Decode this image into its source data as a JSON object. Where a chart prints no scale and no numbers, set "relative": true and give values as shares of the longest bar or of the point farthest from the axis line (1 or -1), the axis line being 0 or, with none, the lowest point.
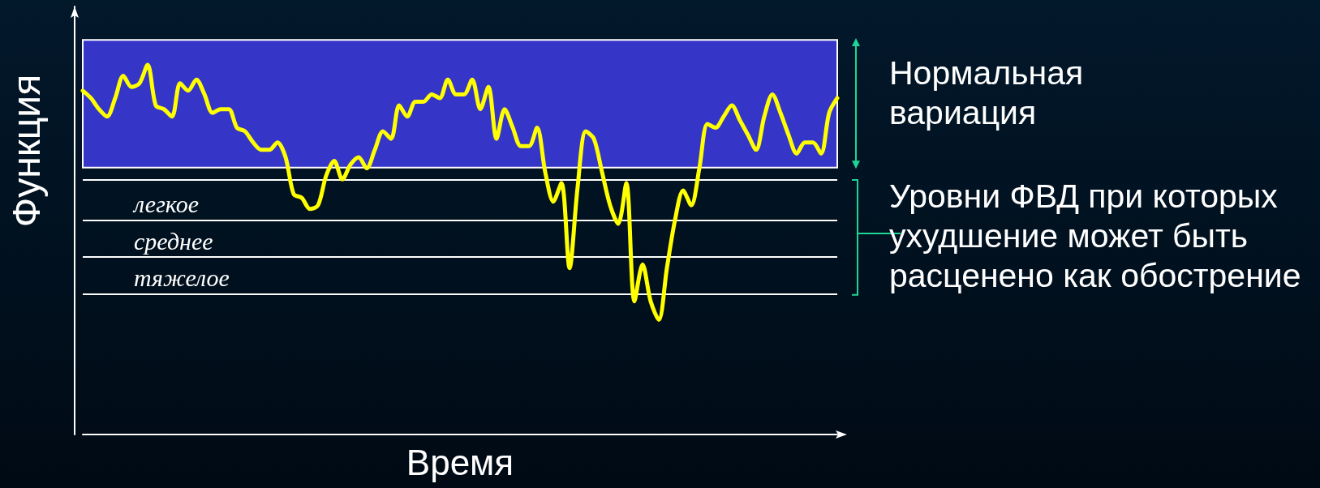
{
  "chart_data": {
    "type": "line",
    "xlabel": "Время",
    "ylabel": "Функция",
    "relative": true,
    "marker": "none",
    "line_style": "solid",
    "grid": false,
    "categories": [
      null,
      null,
      null,
      null,
      null,
      null,
      null,
      null,
      null,
      null,
      null,
      null,
      null,
      null,
      null,
      null,
      null,
      null,
      null,
      null,
      null,
      null,
      null,
      null,
      null,
      null,
      null,
      null,
      null,
      null,
      null,
      null,
      null,
      null,
      null,
      null,
      null,
      null,
      null,
      null,
      null,
      null,
      null,
      null,
      null,
      null,
      null,
      null,
      null,
      null,
      null,
      null,
      null,
      null,
      null,
      null,
      null,
      null,
      null,
      null,
      null,
      null,
      null,
      null,
      null,
      null,
      null,
      null,
      null,
      null,
      null,
      null,
      null,
      null,
      null,
      null,
      null,
      null,
      null,
      null,
      null,
      null,
      null,
      null,
      null,
      null,
      null,
      null,
      null,
      null,
      null,
      null,
      null,
      null
    ],
    "series": [
      {
        "color": "#ffff00",
        "values": [
          0.93,
          0.91,
          0.88,
          0.86,
          0.91,
          0.97,
          0.94,
          0.95,
          1,
          0.89,
          0.88,
          0.86,
          0.95,
          0.93,
          0.96,
          0.92,
          0.87,
          0.88,
          0.88,
          0.83,
          0.82,
          0.79,
          0.77,
          0.77,
          0.79,
          0.75,
          0.65,
          0.64,
          0.61,
          0.62,
          0.7,
          0.74,
          0.69,
          0.73,
          0.75,
          0.72,
          0.77,
          0.82,
          0.8,
          0.89,
          0.86,
          0.9,
          0.9,
          0.92,
          0.91,
          0.96,
          0.92,
          0.92,
          0.96,
          0.88,
          0.94,
          0.8,
          0.88,
          0.83,
          0.78,
          0.78,
          0.83,
          0.71,
          0.63,
          0.68,
          0.45,
          0.67,
          0.82,
          0.8,
          0.71,
          0.62,
          0.57,
          0.68,
          0.36,
          0.46,
          0.36,
          0.31,
          0.45,
          0.58,
          0.66,
          0.62,
          0.72,
          0.84,
          0.83,
          0.86,
          0.89,
          0.85,
          0.81,
          0.77,
          0.86,
          0.92,
          0.87,
          0.81,
          0.76,
          0.79,
          0.79,
          0.76,
          0.87,
          0.91
        ]
      }
    ],
    "bands": [
      {
        "axis": "y",
        "from": 0.722,
        "to": 1.067,
        "label": "Нормальная вариация",
        "color": "#3535c8"
      }
    ],
    "ref_lines": [
      {
        "axis": "y",
        "value": 0.688,
        "label": null,
        "color": "#ffffff"
      },
      {
        "axis": "y",
        "value": 0.579,
        "label": "легкое",
        "color": "#ffffff"
      },
      {
        "axis": "y",
        "value": 0.481,
        "label": "среднее",
        "color": "#ffffff"
      },
      {
        "axis": "y",
        "value": 0.377,
        "label": "тяжелое",
        "color": "#ffffff"
      }
    ],
    "annotations": [
      "Уровни ФВД при которых ухудшение может быть расценено как обострение"
    ]
  }
}
